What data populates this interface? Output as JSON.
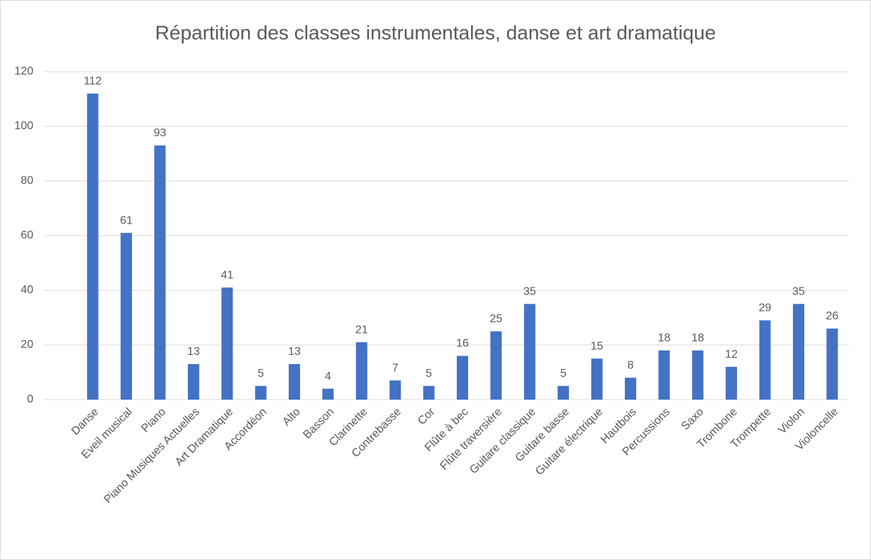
{
  "chart_data": {
    "type": "bar",
    "title": "Répartition des classes instrumentales, danse et art dramatique",
    "categories": [
      "Danse",
      "Eveil musical",
      "Piano",
      "Piano Musiques Actuelles",
      "Art Dramatique",
      "Accordéon",
      "Alto",
      "Basson",
      "Clarinette",
      "Contrebasse",
      "Cor",
      "Flûte à bec",
      "Flûte traversière",
      "Guitare classique",
      "Guitare basse",
      "Guitare électrique",
      "Hautbois",
      "Percussions",
      "Saxo",
      "Trombone",
      "Trompette",
      "Violon",
      "Violoncelle"
    ],
    "values": [
      112,
      61,
      93,
      13,
      41,
      5,
      13,
      4,
      21,
      7,
      5,
      16,
      25,
      35,
      5,
      15,
      8,
      18,
      18,
      12,
      29,
      35,
      26
    ],
    "color": "#4472c4",
    "ylim": [
      0,
      120
    ],
    "yticks": [
      0,
      20,
      40,
      60,
      80,
      100,
      120
    ],
    "grid": true
  }
}
